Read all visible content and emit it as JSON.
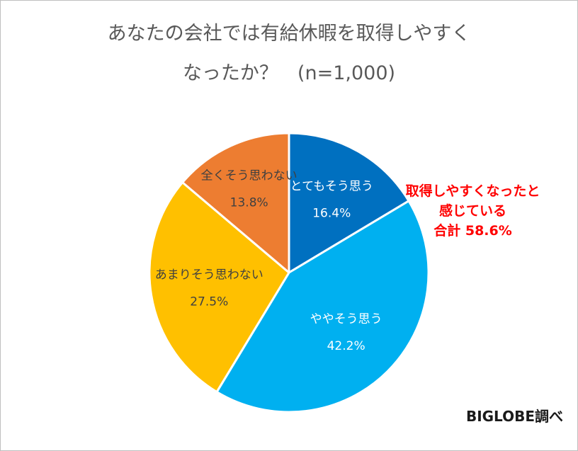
{
  "chart_data": {
    "type": "pie",
    "title_lines": [
      "あなたの会社では有給休暇を取得しやすく",
      "なったか？　(n=1,000)"
    ],
    "slices": [
      {
        "label": "とてもそう思う",
        "value": 16.4,
        "value_label": "16.4%",
        "color": "#0070c0",
        "text_color": "#ffffff"
      },
      {
        "label": "ややそう思う",
        "value": 42.2,
        "value_label": "42.2%",
        "color": "#00b0f0",
        "text_color": "#ffffff"
      },
      {
        "label": "あまりそう思わない",
        "value": 27.5,
        "value_label": "27.5%",
        "color": "#ffc000",
        "text_color": "#404040"
      },
      {
        "label": "全くそう思わない",
        "value": 13.8,
        "value_label": "13.8%",
        "color": "#ed7d31",
        "text_color": "#404040"
      }
    ],
    "start_angle": "12 o'clock",
    "direction": "clockwise",
    "annotation_lines": [
      "取得しやすくなったと",
      "感じている",
      "合計 58.6%"
    ],
    "annotation_color": "#ff0000",
    "source": "BIGLOBE調べ",
    "legend": "none"
  }
}
